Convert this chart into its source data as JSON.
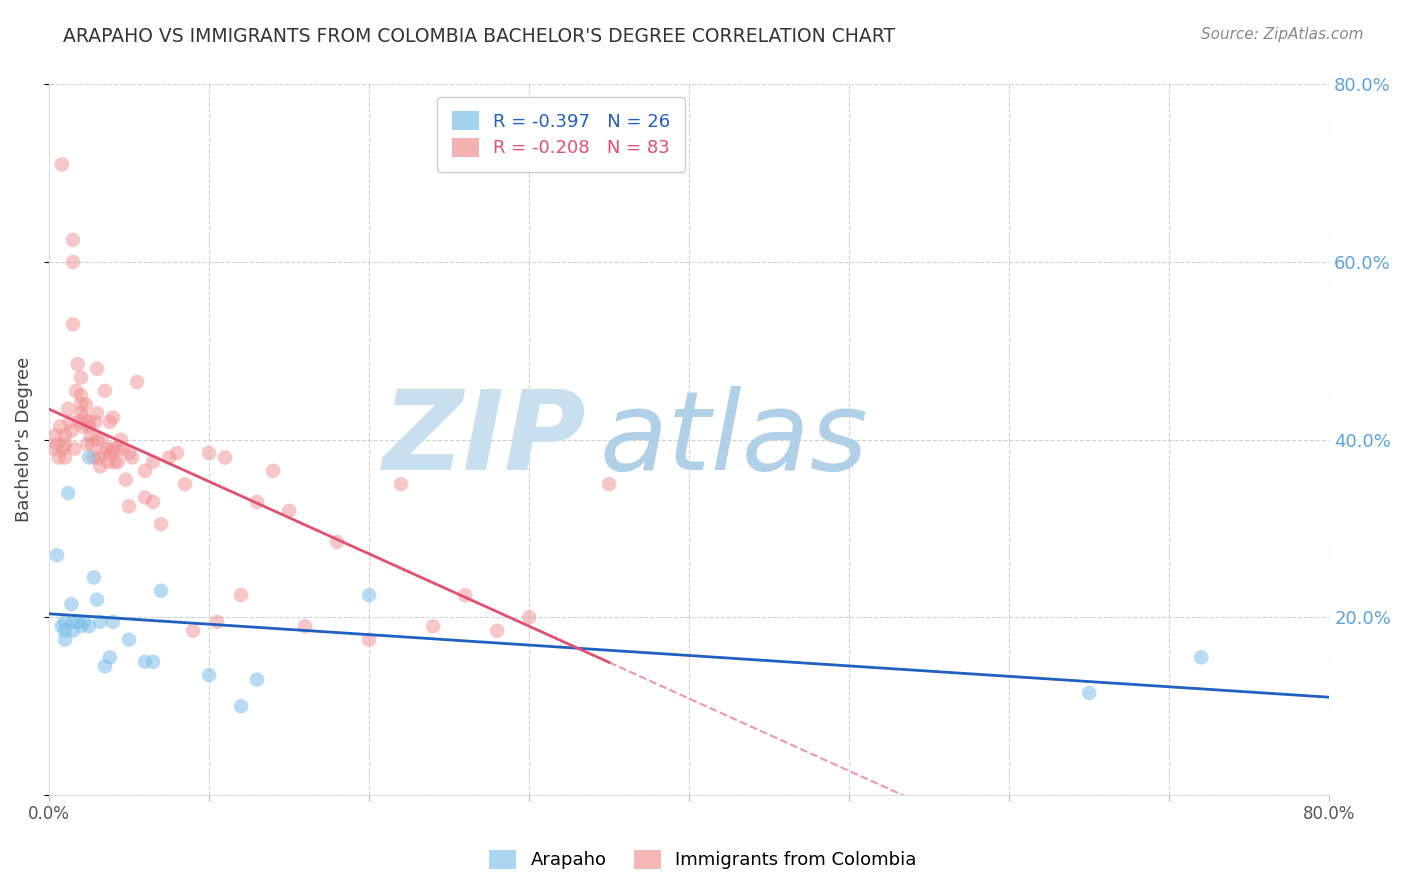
{
  "title": "ARAPAHO VS IMMIGRANTS FROM COLOMBIA BACHELOR'S DEGREE CORRELATION CHART",
  "source": "Source: ZipAtlas.com",
  "ylabel": "Bachelor's Degree",
  "xlim": [
    0.0,
    0.8
  ],
  "ylim": [
    0.0,
    0.8
  ],
  "background_color": "#ffffff",
  "grid_color": "#cccccc",
  "blue_color": "#7fbfea",
  "pink_color": "#f09090",
  "blue_line_color": "#2060c0",
  "pink_line_color": "#e05070",
  "right_axis_color": "#5ba3d9",
  "watermark_zip_color": "#c8dff0",
  "watermark_atlas_color": "#b0d0e8",
  "arapaho_x": [
    0.005,
    0.008,
    0.01,
    0.01,
    0.01,
    0.012,
    0.014,
    0.015,
    0.015,
    0.018,
    0.02,
    0.022,
    0.025,
    0.025,
    0.028,
    0.03,
    0.032,
    0.035,
    0.038,
    0.04,
    0.05,
    0.06,
    0.065,
    0.07,
    0.1,
    0.12,
    0.13,
    0.2,
    0.65,
    0.72
  ],
  "arapaho_y": [
    0.27,
    0.19,
    0.195,
    0.185,
    0.175,
    0.34,
    0.215,
    0.195,
    0.185,
    0.195,
    0.19,
    0.195,
    0.38,
    0.19,
    0.245,
    0.22,
    0.195,
    0.145,
    0.155,
    0.195,
    0.175,
    0.15,
    0.15,
    0.23,
    0.135,
    0.1,
    0.13,
    0.225,
    0.115,
    0.155
  ],
  "colombia_x": [
    0.003,
    0.004,
    0.005,
    0.006,
    0.007,
    0.008,
    0.009,
    0.01,
    0.01,
    0.01,
    0.012,
    0.013,
    0.014,
    0.015,
    0.015,
    0.015,
    0.016,
    0.017,
    0.018,
    0.019,
    0.02,
    0.02,
    0.02,
    0.02,
    0.021,
    0.022,
    0.023,
    0.024,
    0.025,
    0.025,
    0.026,
    0.027,
    0.028,
    0.029,
    0.03,
    0.03,
    0.03,
    0.031,
    0.032,
    0.033,
    0.034,
    0.035,
    0.036,
    0.037,
    0.038,
    0.039,
    0.04,
    0.04,
    0.041,
    0.042,
    0.043,
    0.045,
    0.046,
    0.048,
    0.05,
    0.05,
    0.052,
    0.055,
    0.06,
    0.06,
    0.065,
    0.065,
    0.07,
    0.075,
    0.08,
    0.085,
    0.09,
    0.1,
    0.105,
    0.11,
    0.12,
    0.13,
    0.14,
    0.15,
    0.16,
    0.18,
    0.2,
    0.22,
    0.24,
    0.26,
    0.28,
    0.3,
    0.35
  ],
  "colombia_y": [
    0.39,
    0.405,
    0.395,
    0.38,
    0.415,
    0.71,
    0.39,
    0.405,
    0.395,
    0.38,
    0.435,
    0.42,
    0.41,
    0.625,
    0.6,
    0.53,
    0.39,
    0.455,
    0.485,
    0.42,
    0.47,
    0.45,
    0.44,
    0.43,
    0.415,
    0.425,
    0.44,
    0.395,
    0.42,
    0.415,
    0.405,
    0.395,
    0.38,
    0.42,
    0.48,
    0.43,
    0.4,
    0.38,
    0.37,
    0.4,
    0.385,
    0.455,
    0.39,
    0.375,
    0.42,
    0.385,
    0.425,
    0.39,
    0.375,
    0.39,
    0.375,
    0.4,
    0.39,
    0.355,
    0.385,
    0.325,
    0.38,
    0.465,
    0.365,
    0.335,
    0.375,
    0.33,
    0.305,
    0.38,
    0.385,
    0.35,
    0.185,
    0.385,
    0.195,
    0.38,
    0.225,
    0.33,
    0.365,
    0.32,
    0.19,
    0.285,
    0.175,
    0.35,
    0.19,
    0.225,
    0.185,
    0.2,
    0.35
  ]
}
